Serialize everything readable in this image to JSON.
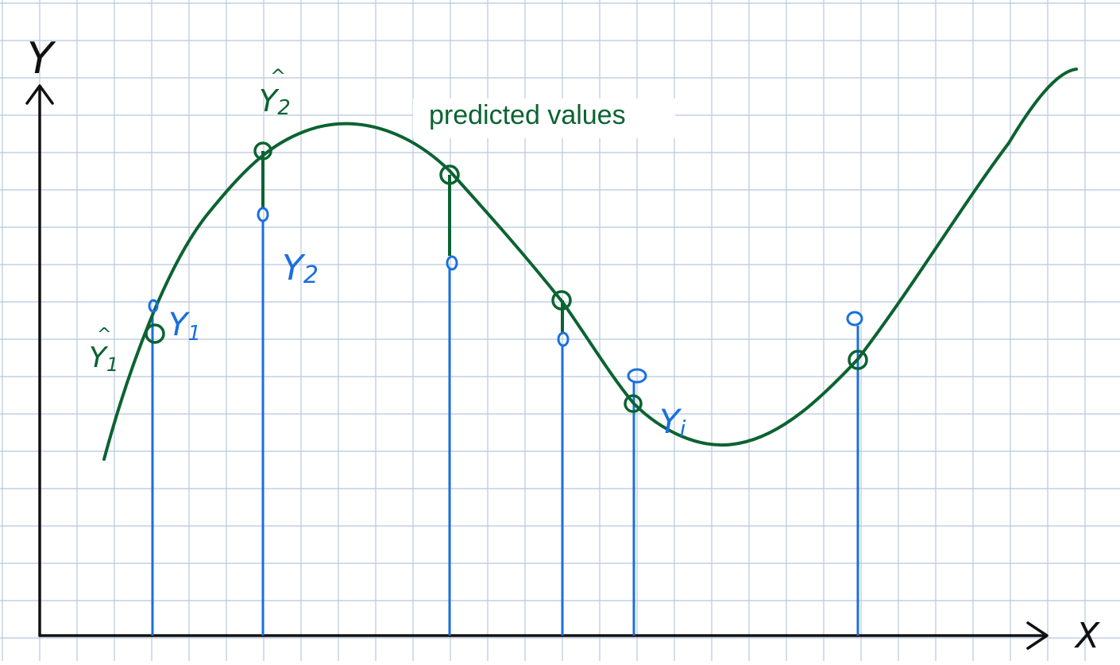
{
  "diagram": {
    "caption": "predicted values",
    "axis_labels": {
      "y": "Y",
      "x": "X"
    },
    "observed_labels": [
      {
        "main": "Y",
        "sub": "1"
      },
      {
        "main": "Y",
        "sub": "2"
      },
      {
        "main": "Y",
        "sub": "i"
      }
    ],
    "predicted_labels": [
      {
        "main": "Y",
        "sub": "1",
        "hat": "^"
      },
      {
        "main": "Y",
        "sub": "2",
        "hat": "^"
      }
    ],
    "colors": {
      "grid": "#b7c8dc",
      "axes": "#111111",
      "observed": "#1a6fe0",
      "predicted": "#0b6331"
    }
  }
}
